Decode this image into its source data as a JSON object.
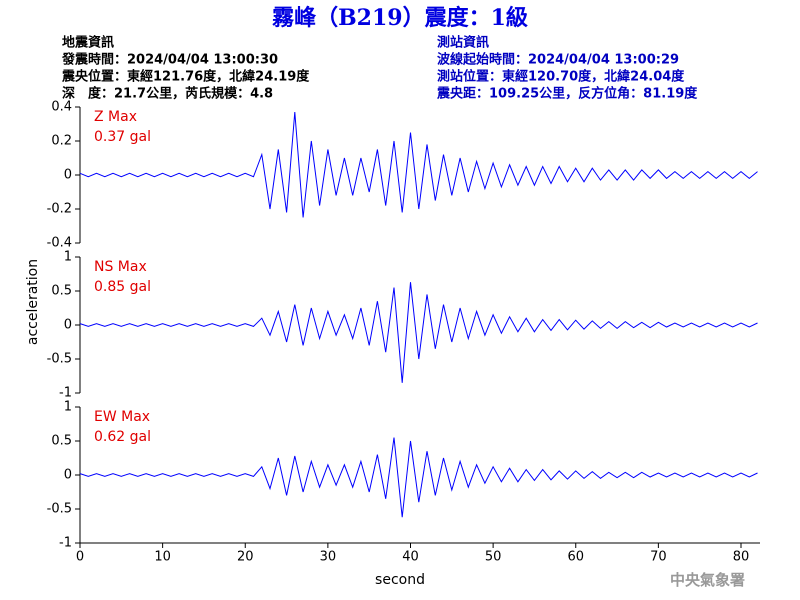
{
  "title": "霧峰（B219）震度：1級",
  "info": {
    "left": [
      "地震資訊",
      "發震時間：2024/04/04 13:00:30",
      "震央位置：東經121.76度，北緯24.19度",
      "深　度：21.7公里，芮氏規模：4.8"
    ],
    "right": [
      "測站資訊",
      "波線起始時間：2024/04/04 13:00:29",
      "測站位置：東經120.70度，北緯24.04度",
      "震央距：109.25公里，反方位角：81.19度"
    ]
  },
  "footer": "中央氣象署",
  "chart_data": [
    {
      "type": "line",
      "annotations": [
        "Z Max",
        "0.37 gal"
      ],
      "xlim": [
        0,
        82.3
      ],
      "ylim": [
        -0.4,
        0.4
      ],
      "yticks": [
        -0.4,
        -0.2,
        0,
        0.2,
        0.4
      ],
      "color": "#0000ff",
      "x": [
        0,
        1,
        2,
        3,
        4,
        5,
        6,
        7,
        8,
        9,
        10,
        11,
        12,
        13,
        14,
        15,
        16,
        17,
        18,
        19,
        20,
        21,
        22,
        23,
        24,
        25,
        26,
        27,
        28,
        29,
        30,
        31,
        32,
        33,
        34,
        35,
        36,
        37,
        38,
        39,
        40,
        41,
        42,
        43,
        44,
        45,
        46,
        47,
        48,
        49,
        50,
        51,
        52,
        53,
        54,
        55,
        56,
        57,
        58,
        59,
        60,
        61,
        62,
        63,
        64,
        65,
        66,
        67,
        68,
        69,
        70,
        71,
        72,
        73,
        74,
        75,
        76,
        77,
        78,
        79,
        80,
        81,
        82
      ],
      "values": [
        0.01,
        -0.01,
        0.01,
        -0.01,
        0.01,
        -0.01,
        0.01,
        -0.01,
        0.01,
        -0.01,
        0.01,
        -0.01,
        0.01,
        -0.01,
        0.01,
        -0.01,
        0.01,
        -0.01,
        0.01,
        -0.01,
        0.01,
        -0.01,
        0.12,
        -0.2,
        0.15,
        -0.22,
        0.37,
        -0.25,
        0.2,
        -0.18,
        0.15,
        -0.12,
        0.1,
        -0.12,
        0.1,
        -0.1,
        0.15,
        -0.18,
        0.2,
        -0.22,
        0.25,
        -0.2,
        0.18,
        -0.15,
        0.12,
        -0.12,
        0.1,
        -0.1,
        0.08,
        -0.08,
        0.07,
        -0.07,
        0.06,
        -0.06,
        0.05,
        -0.06,
        0.05,
        -0.05,
        0.05,
        -0.04,
        0.04,
        -0.04,
        0.04,
        -0.03,
        0.03,
        -0.03,
        0.03,
        -0.03,
        0.03,
        -0.02,
        0.03,
        -0.02,
        0.02,
        -0.02,
        0.02,
        -0.02,
        0.02,
        -0.02,
        0.02,
        -0.02,
        0.02,
        -0.02,
        0.02
      ]
    },
    {
      "type": "line",
      "ylabel": "acceleration",
      "annotations": [
        "NS Max",
        "0.85 gal"
      ],
      "xlim": [
        0,
        82.3
      ],
      "ylim": [
        -1,
        1
      ],
      "yticks": [
        -1,
        -0.5,
        0,
        0.5,
        1
      ],
      "color": "#0000ff",
      "x": [
        0,
        1,
        2,
        3,
        4,
        5,
        6,
        7,
        8,
        9,
        10,
        11,
        12,
        13,
        14,
        15,
        16,
        17,
        18,
        19,
        20,
        21,
        22,
        23,
        24,
        25,
        26,
        27,
        28,
        29,
        30,
        31,
        32,
        33,
        34,
        35,
        36,
        37,
        38,
        39,
        40,
        41,
        42,
        43,
        44,
        45,
        46,
        47,
        48,
        49,
        50,
        51,
        52,
        53,
        54,
        55,
        56,
        57,
        58,
        59,
        60,
        61,
        62,
        63,
        64,
        65,
        66,
        67,
        68,
        69,
        70,
        71,
        72,
        73,
        74,
        75,
        76,
        77,
        78,
        79,
        80,
        81,
        82
      ],
      "values": [
        0.02,
        -0.02,
        0.02,
        -0.02,
        0.02,
        -0.02,
        0.02,
        -0.02,
        0.02,
        -0.02,
        0.02,
        -0.02,
        0.02,
        -0.02,
        0.02,
        -0.02,
        0.02,
        -0.02,
        0.02,
        -0.02,
        0.02,
        -0.02,
        0.1,
        -0.15,
        0.2,
        -0.25,
        0.3,
        -0.3,
        0.25,
        -0.2,
        0.2,
        -0.15,
        0.15,
        -0.2,
        0.25,
        -0.3,
        0.35,
        -0.4,
        0.55,
        -0.85,
        0.63,
        -0.5,
        0.45,
        -0.35,
        0.3,
        -0.25,
        0.25,
        -0.2,
        0.2,
        -0.15,
        0.15,
        -0.12,
        0.12,
        -0.1,
        0.1,
        -0.1,
        0.08,
        -0.08,
        0.08,
        -0.07,
        0.07,
        -0.06,
        0.06,
        -0.05,
        0.05,
        -0.05,
        0.05,
        -0.04,
        0.04,
        -0.04,
        0.04,
        -0.03,
        0.03,
        -0.03,
        0.03,
        -0.03,
        0.03,
        -0.03,
        0.03,
        -0.03,
        0.03,
        -0.03,
        0.03
      ]
    },
    {
      "type": "line",
      "xlabel": "second",
      "annotations": [
        "EW Max",
        "0.62 gal"
      ],
      "xlim": [
        0,
        82.3
      ],
      "xticks": [
        0,
        10,
        20,
        30,
        40,
        50,
        60,
        70,
        80
      ],
      "ylim": [
        -1,
        1
      ],
      "yticks": [
        -1,
        -0.5,
        0,
        0.5,
        1
      ],
      "color": "#0000ff",
      "x": [
        0,
        1,
        2,
        3,
        4,
        5,
        6,
        7,
        8,
        9,
        10,
        11,
        12,
        13,
        14,
        15,
        16,
        17,
        18,
        19,
        20,
        21,
        22,
        23,
        24,
        25,
        26,
        27,
        28,
        29,
        30,
        31,
        32,
        33,
        34,
        35,
        36,
        37,
        38,
        39,
        40,
        41,
        42,
        43,
        44,
        45,
        46,
        47,
        48,
        49,
        50,
        51,
        52,
        53,
        54,
        55,
        56,
        57,
        58,
        59,
        60,
        61,
        62,
        63,
        64,
        65,
        66,
        67,
        68,
        69,
        70,
        71,
        72,
        73,
        74,
        75,
        76,
        77,
        78,
        79,
        80,
        81,
        82
      ],
      "values": [
        0.02,
        -0.02,
        0.02,
        -0.02,
        0.02,
        -0.02,
        0.02,
        -0.02,
        0.02,
        -0.02,
        0.02,
        -0.02,
        0.02,
        -0.02,
        0.02,
        -0.02,
        0.02,
        -0.02,
        0.02,
        -0.02,
        0.02,
        -0.02,
        0.12,
        -0.2,
        0.25,
        -0.3,
        0.28,
        -0.25,
        0.2,
        -0.18,
        0.15,
        -0.15,
        0.15,
        -0.18,
        0.2,
        -0.25,
        0.3,
        -0.35,
        0.55,
        -0.62,
        0.5,
        -0.4,
        0.35,
        -0.3,
        0.25,
        -0.22,
        0.2,
        -0.18,
        0.15,
        -0.12,
        0.12,
        -0.1,
        0.1,
        -0.1,
        0.08,
        -0.08,
        0.08,
        -0.07,
        0.06,
        -0.06,
        0.06,
        -0.05,
        0.05,
        -0.05,
        0.04,
        -0.04,
        0.04,
        -0.04,
        0.04,
        -0.03,
        0.03,
        -0.03,
        0.03,
        -0.03,
        0.03,
        -0.03,
        0.03,
        -0.03,
        0.03,
        -0.03,
        0.03,
        -0.03,
        0.03
      ]
    }
  ]
}
